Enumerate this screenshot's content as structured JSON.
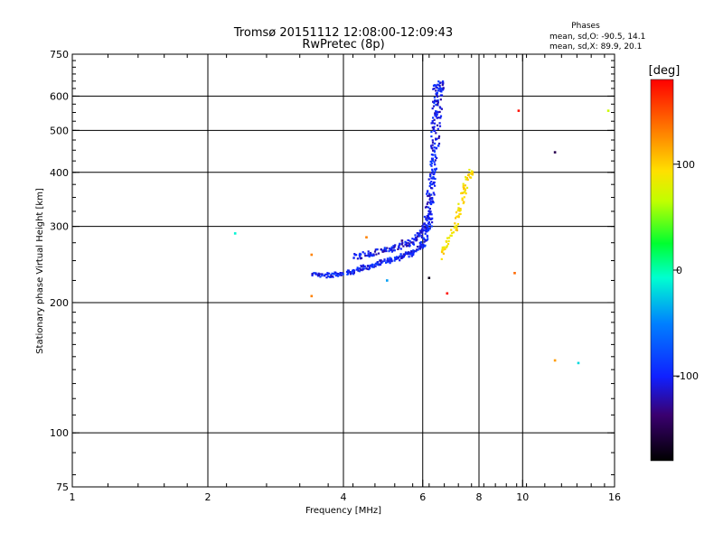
{
  "chart_data": {
    "type": "scatter",
    "title_line1": "Tromsø 20151112 12:08:00-12:09:43",
    "title_line2": "RwPretec (8p)",
    "phases_block": {
      "heading": "Phases",
      "line_o": "mean, sd,O: -90.5, 14.1",
      "line_x": "mean, sd,X:  89.9, 20.1"
    },
    "xlabel": "Frequency [MHz]",
    "ylabel": "Stationary phase Virtual Height [km]",
    "x_scale": "log",
    "y_scale": "log",
    "xlim": [
      1,
      16
    ],
    "ylim": [
      75,
      750
    ],
    "x_ticks": [
      1,
      2,
      4,
      6,
      8,
      10,
      16
    ],
    "x_tick_labels": [
      "1",
      "2",
      "4",
      "6",
      "8",
      "10",
      "16"
    ],
    "x_gridlines": [
      2,
      4,
      6,
      8,
      10
    ],
    "y_ticks": [
      75,
      100,
      200,
      300,
      400,
      500,
      600,
      750
    ],
    "y_tick_labels": [
      "75",
      "100",
      "200",
      "300",
      "400",
      "500",
      "600",
      "750"
    ],
    "y_gridlines": [
      100,
      200,
      300,
      400,
      500,
      600
    ],
    "colorbar": {
      "label": "[deg]",
      "range": [
        -180,
        180
      ],
      "ticks": [
        100,
        0,
        -100
      ],
      "tick_labels": [
        "100",
        "0",
        "-100"
      ]
    },
    "o_trace": [
      [
        3.4,
        232
      ],
      [
        3.6,
        231
      ],
      [
        3.8,
        232
      ],
      [
        4.0,
        233
      ],
      [
        4.2,
        236
      ],
      [
        4.4,
        240
      ],
      [
        4.6,
        243
      ],
      [
        4.8,
        246
      ],
      [
        5.0,
        249
      ],
      [
        5.2,
        252
      ],
      [
        5.4,
        255
      ],
      [
        5.6,
        259
      ],
      [
        5.8,
        264
      ],
      [
        6.0,
        272
      ],
      [
        6.1,
        282
      ],
      [
        6.2,
        300
      ],
      [
        6.25,
        330
      ],
      [
        6.3,
        370
      ],
      [
        6.33,
        420
      ],
      [
        6.36,
        480
      ],
      [
        6.38,
        540
      ],
      [
        6.4,
        600
      ],
      [
        6.45,
        640
      ]
    ],
    "o_trace_upper": [
      [
        4.2,
        255
      ],
      [
        4.5,
        258
      ],
      [
        4.8,
        262
      ],
      [
        5.1,
        266
      ],
      [
        5.4,
        270
      ],
      [
        5.7,
        277
      ],
      [
        5.9,
        286
      ],
      [
        6.05,
        300
      ],
      [
        6.15,
        320
      ],
      [
        6.25,
        360
      ],
      [
        6.35,
        420
      ],
      [
        6.45,
        500
      ],
      [
        6.5,
        560
      ],
      [
        6.55,
        620
      ],
      [
        6.6,
        650
      ]
    ],
    "x_trace": [
      [
        6.5,
        252
      ],
      [
        6.7,
        265
      ],
      [
        6.9,
        280
      ],
      [
        7.1,
        300
      ],
      [
        7.2,
        320
      ],
      [
        7.3,
        340
      ],
      [
        7.4,
        360
      ],
      [
        7.5,
        380
      ],
      [
        7.6,
        395
      ],
      [
        7.7,
        400
      ]
    ],
    "scattered_points": [
      {
        "x": 2.3,
        "y": 289,
        "phase": -10
      },
      {
        "x": 3.4,
        "y": 258,
        "phase": 130
      },
      {
        "x": 3.4,
        "y": 207,
        "phase": 130
      },
      {
        "x": 4.5,
        "y": 283,
        "phase": 130
      },
      {
        "x": 5.0,
        "y": 225,
        "phase": -40
      },
      {
        "x": 5.4,
        "y": 278,
        "phase": -130
      },
      {
        "x": 6.2,
        "y": 228,
        "phase": -170
      },
      {
        "x": 6.8,
        "y": 210,
        "phase": 175
      },
      {
        "x": 9.6,
        "y": 234,
        "phase": 140
      },
      {
        "x": 9.8,
        "y": 555,
        "phase": 175
      },
      {
        "x": 11.8,
        "y": 445,
        "phase": -150
      },
      {
        "x": 11.8,
        "y": 147,
        "phase": 120
      },
      {
        "x": 13.3,
        "y": 145,
        "phase": -20
      },
      {
        "x": 15.5,
        "y": 555,
        "phase": 70
      }
    ]
  }
}
